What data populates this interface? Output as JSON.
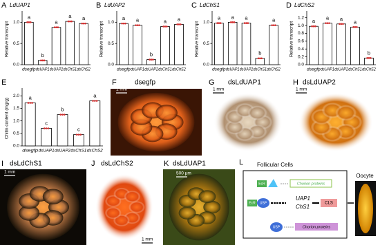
{
  "chart_data": [
    {
      "type": "bar",
      "panel": "A",
      "title": "LdUAP1",
      "y_label": "Relative transcript",
      "categories": [
        "dsegfp",
        "dsUAP1",
        "dsUAP2",
        "dsChS1",
        "dsChS2"
      ],
      "values": [
        1.0,
        0.1,
        0.88,
        1.02,
        0.97
      ],
      "annotations": [
        "a",
        "b",
        "a",
        "a",
        "a"
      ],
      "ylim": [
        0,
        1.2
      ],
      "yticks": [
        {
          "value": 0,
          "label": "0.0"
        },
        {
          "value": 0.5,
          "label": "0.5"
        },
        {
          "value": 1,
          "label": "1.0"
        }
      ]
    },
    {
      "type": "bar",
      "panel": "B",
      "title": "LdUAP2",
      "y_label": "Relative transcript",
      "categories": [
        "dsegfp",
        "dsUAP1",
        "dsUAP2",
        "dsChS1",
        "dsChS2"
      ],
      "values": [
        0.97,
        0.93,
        0.12,
        0.9,
        0.95
      ],
      "annotations": [
        "a",
        "a",
        "b",
        "a",
        "a"
      ],
      "ylim": [
        0,
        1.2
      ],
      "yticks": [
        {
          "value": 0,
          "label": "0.0"
        },
        {
          "value": 0.5,
          "label": "0.5"
        },
        {
          "value": 1,
          "label": "1.0"
        }
      ]
    },
    {
      "type": "bar",
      "panel": "C",
      "title": "LdChS1",
      "y_label": "Relative transcript",
      "categories": [
        "dsegfp",
        "dsUAP1",
        "dsUAP2",
        "dsChS1",
        "dsChS2"
      ],
      "values": [
        0.98,
        1.0,
        0.98,
        0.15,
        0.93
      ],
      "annotations": [
        "a",
        "a",
        "a",
        "b",
        "a"
      ],
      "ylim": [
        0,
        1.2
      ],
      "yticks": [
        {
          "value": 0,
          "label": "0.0"
        },
        {
          "value": 0.5,
          "label": "0.5"
        },
        {
          "value": 1,
          "label": "1.0"
        }
      ]
    },
    {
      "type": "bar",
      "panel": "D",
      "title": "LdChS2",
      "y_label": "Relative transcript",
      "categories": [
        "dsegfp",
        "dsUAP1",
        "dsUAP2",
        "dsChS1",
        "dsChS2"
      ],
      "values": [
        0.98,
        1.06,
        1.04,
        0.96,
        0.17
      ],
      "annotations": [
        "a",
        "a",
        "a",
        "a",
        "b"
      ],
      "ylim": [
        0,
        1.3
      ],
      "yticks": [
        {
          "value": 0,
          "label": "0.0"
        },
        {
          "value": 0.2,
          "label": "0.2"
        },
        {
          "value": 0.4,
          "label": "0.4"
        },
        {
          "value": 0.6,
          "label": "0.6"
        },
        {
          "value": 0.8,
          "label": "0.8"
        },
        {
          "value": 1,
          "label": "1.0"
        },
        {
          "value": 1.2,
          "label": "1.2"
        }
      ]
    },
    {
      "type": "bar",
      "panel": "E",
      "y_label": "Chitin content (mg/g)",
      "categories": [
        "dsegfp",
        "dsUAP1",
        "dsUAP2",
        "dsChS1",
        "dsChS2"
      ],
      "values": [
        1.72,
        0.7,
        1.25,
        0.45,
        1.8
      ],
      "annotations": [
        "a",
        "c",
        "b",
        "c",
        "a"
      ],
      "ylim": [
        0,
        2.2
      ],
      "yticks": [
        {
          "value": 0,
          "label": "0.0"
        },
        {
          "value": 0.5,
          "label": "0.5"
        },
        {
          "value": 1,
          "label": "1.0"
        },
        {
          "value": 1.5,
          "label": "1.5"
        },
        {
          "value": 2,
          "label": "2.0"
        }
      ]
    }
  ],
  "panels": [
    {
      "label": "F",
      "caption": "dsegfp",
      "scale": "1 mm"
    },
    {
      "label": "G",
      "caption": "dsLdUAP1",
      "scale": "1 mm"
    },
    {
      "label": "H",
      "caption": "dsLdUAP2",
      "scale": "1 mm"
    },
    {
      "label": "I",
      "caption": "dsLdChS1",
      "scale": "1 mm"
    },
    {
      "label": "J",
      "caption": "dsLdChS2",
      "scale": "1 mm"
    },
    {
      "label": "K",
      "caption": "dsLdUAP1",
      "scale": "500 μm"
    }
  ],
  "diagram": {
    "label": "L",
    "title": "Follicular Cells",
    "ecr_top": "EcR",
    "ecr_left": "EcR",
    "usp_left": "USP",
    "usp_bottom": "USP",
    "chorion_top": "Chorion proteins",
    "chorion_bottom": "Chorion proteins",
    "gene1": "UAP1",
    "gene2": "ChS1",
    "cls": "CLS",
    "oocyte": "Oocyte"
  }
}
